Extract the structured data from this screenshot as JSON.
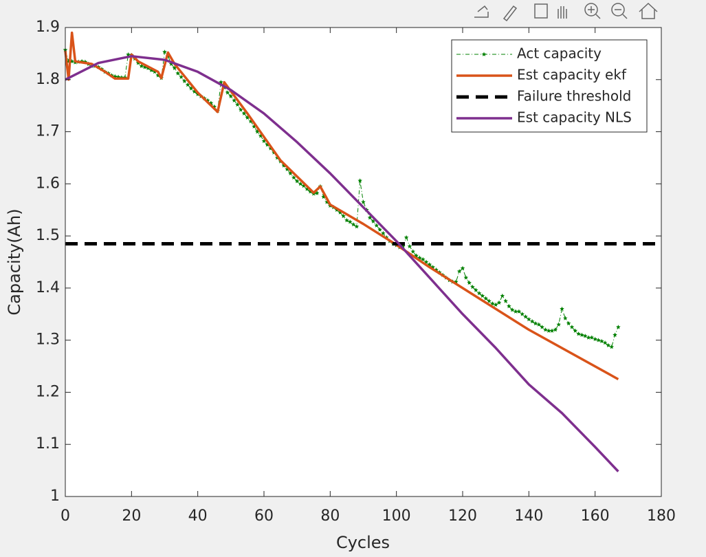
{
  "chart_data": {
    "type": "line",
    "xlabel": "Cycles",
    "ylabel": "Capacity(Ah)",
    "xlim": [
      0,
      180
    ],
    "ylim": [
      1,
      1.9
    ],
    "xticks": [
      0,
      20,
      40,
      60,
      80,
      100,
      120,
      140,
      160,
      180
    ],
    "yticks": [
      1,
      1.1,
      1.2,
      1.3,
      1.4,
      1.5,
      1.6,
      1.7,
      1.8,
      1.9
    ],
    "grid": false,
    "legend": "northeast",
    "series": [
      {
        "name": "Act capacity",
        "color": "#008000",
        "style": "dashdot-star",
        "x": [
          0,
          1,
          2,
          3,
          4,
          5,
          6,
          7,
          8,
          9,
          10,
          11,
          12,
          13,
          14,
          15,
          16,
          17,
          18,
          19,
          20,
          21,
          22,
          23,
          24,
          25,
          26,
          27,
          28,
          29,
          30,
          31,
          32,
          33,
          34,
          35,
          36,
          37,
          38,
          39,
          40,
          41,
          42,
          43,
          44,
          45,
          46,
          47,
          48,
          49,
          50,
          51,
          52,
          53,
          54,
          55,
          56,
          57,
          58,
          59,
          60,
          61,
          62,
          63,
          64,
          65,
          66,
          67,
          68,
          69,
          70,
          71,
          72,
          73,
          74,
          75,
          76,
          77,
          78,
          79,
          80,
          81,
          82,
          83,
          84,
          85,
          86,
          87,
          88,
          89,
          90,
          91,
          92,
          93,
          94,
          95,
          96,
          97,
          98,
          99,
          100,
          101,
          102,
          103,
          104,
          105,
          106,
          107,
          108,
          109,
          110,
          111,
          112,
          113,
          114,
          115,
          116,
          117,
          118,
          119,
          120,
          121,
          122,
          123,
          124,
          125,
          126,
          127,
          128,
          129,
          130,
          131,
          132,
          133,
          134,
          135,
          136,
          137,
          138,
          139,
          140,
          141,
          142,
          143,
          144,
          145,
          146,
          147,
          148,
          149,
          150,
          151,
          152,
          153,
          154,
          155,
          156,
          157,
          158,
          159,
          160,
          161,
          162,
          163,
          164,
          165,
          166,
          167
        ],
        "values": [
          1.857,
          1.835,
          1.835,
          1.833,
          1.834,
          1.835,
          1.834,
          1.83,
          1.826,
          1.826,
          1.824,
          1.82,
          1.815,
          1.812,
          1.808,
          1.806,
          1.805,
          1.804,
          1.804,
          1.848,
          1.847,
          1.84,
          1.832,
          1.826,
          1.824,
          1.822,
          1.818,
          1.815,
          1.808,
          1.803,
          1.853,
          1.845,
          1.83,
          1.822,
          1.812,
          1.805,
          1.797,
          1.79,
          1.783,
          1.777,
          1.772,
          1.768,
          1.764,
          1.76,
          1.755,
          1.748,
          1.74,
          1.795,
          1.785,
          1.775,
          1.768,
          1.76,
          1.752,
          1.742,
          1.735,
          1.727,
          1.72,
          1.71,
          1.7,
          1.692,
          1.682,
          1.675,
          1.668,
          1.66,
          1.65,
          1.643,
          1.635,
          1.628,
          1.62,
          1.612,
          1.605,
          1.6,
          1.596,
          1.59,
          1.585,
          1.581,
          1.582,
          1.595,
          1.575,
          1.565,
          1.558,
          1.555,
          1.55,
          1.545,
          1.538,
          1.53,
          1.527,
          1.522,
          1.518,
          1.606,
          1.565,
          1.55,
          1.535,
          1.528,
          1.52,
          1.512,
          1.505,
          1.497,
          1.49,
          1.485,
          1.482,
          1.478,
          1.48,
          1.497,
          1.48,
          1.47,
          1.462,
          1.458,
          1.455,
          1.45,
          1.445,
          1.44,
          1.435,
          1.43,
          1.425,
          1.42,
          1.415,
          1.412,
          1.412,
          1.432,
          1.438,
          1.42,
          1.41,
          1.402,
          1.396,
          1.39,
          1.385,
          1.38,
          1.375,
          1.37,
          1.368,
          1.372,
          1.385,
          1.375,
          1.365,
          1.358,
          1.355,
          1.355,
          1.35,
          1.345,
          1.34,
          1.336,
          1.332,
          1.33,
          1.325,
          1.32,
          1.318,
          1.318,
          1.32,
          1.33,
          1.36,
          1.342,
          1.332,
          1.325,
          1.318,
          1.312,
          1.31,
          1.308,
          1.305,
          1.305,
          1.302,
          1.3,
          1.298,
          1.295,
          1.29,
          1.287,
          1.31,
          1.325
        ]
      },
      {
        "name": "Est capacity ekf",
        "color": "#d95319",
        "style": "solid",
        "x": [
          0,
          1,
          2,
          3,
          8,
          12,
          15,
          19,
          20,
          22,
          28,
          29,
          31,
          33,
          40,
          46,
          48,
          55,
          65,
          75,
          77,
          80,
          90,
          100,
          110,
          120,
          140,
          167
        ],
        "values": [
          1.855,
          1.8,
          1.89,
          1.835,
          1.83,
          1.815,
          1.802,
          1.802,
          1.848,
          1.835,
          1.815,
          1.803,
          1.852,
          1.83,
          1.775,
          1.738,
          1.795,
          1.735,
          1.645,
          1.583,
          1.595,
          1.56,
          1.523,
          1.483,
          1.44,
          1.4,
          1.32,
          1.225
        ]
      },
      {
        "name": "Failure threshold",
        "color": "#000000",
        "style": "dashed",
        "x": [
          0,
          180
        ],
        "values": [
          1.485,
          1.485
        ]
      },
      {
        "name": "Est capacity NLS",
        "color": "#7e2f8e",
        "style": "solid",
        "x": [
          0,
          10,
          20,
          30,
          40,
          50,
          60,
          70,
          80,
          90,
          100,
          110,
          120,
          130,
          140,
          150,
          160,
          167
        ],
        "values": [
          1.8,
          1.832,
          1.845,
          1.838,
          1.815,
          1.78,
          1.735,
          1.68,
          1.62,
          1.555,
          1.49,
          1.42,
          1.35,
          1.285,
          1.215,
          1.16,
          1.095,
          1.048
        ]
      }
    ]
  }
}
